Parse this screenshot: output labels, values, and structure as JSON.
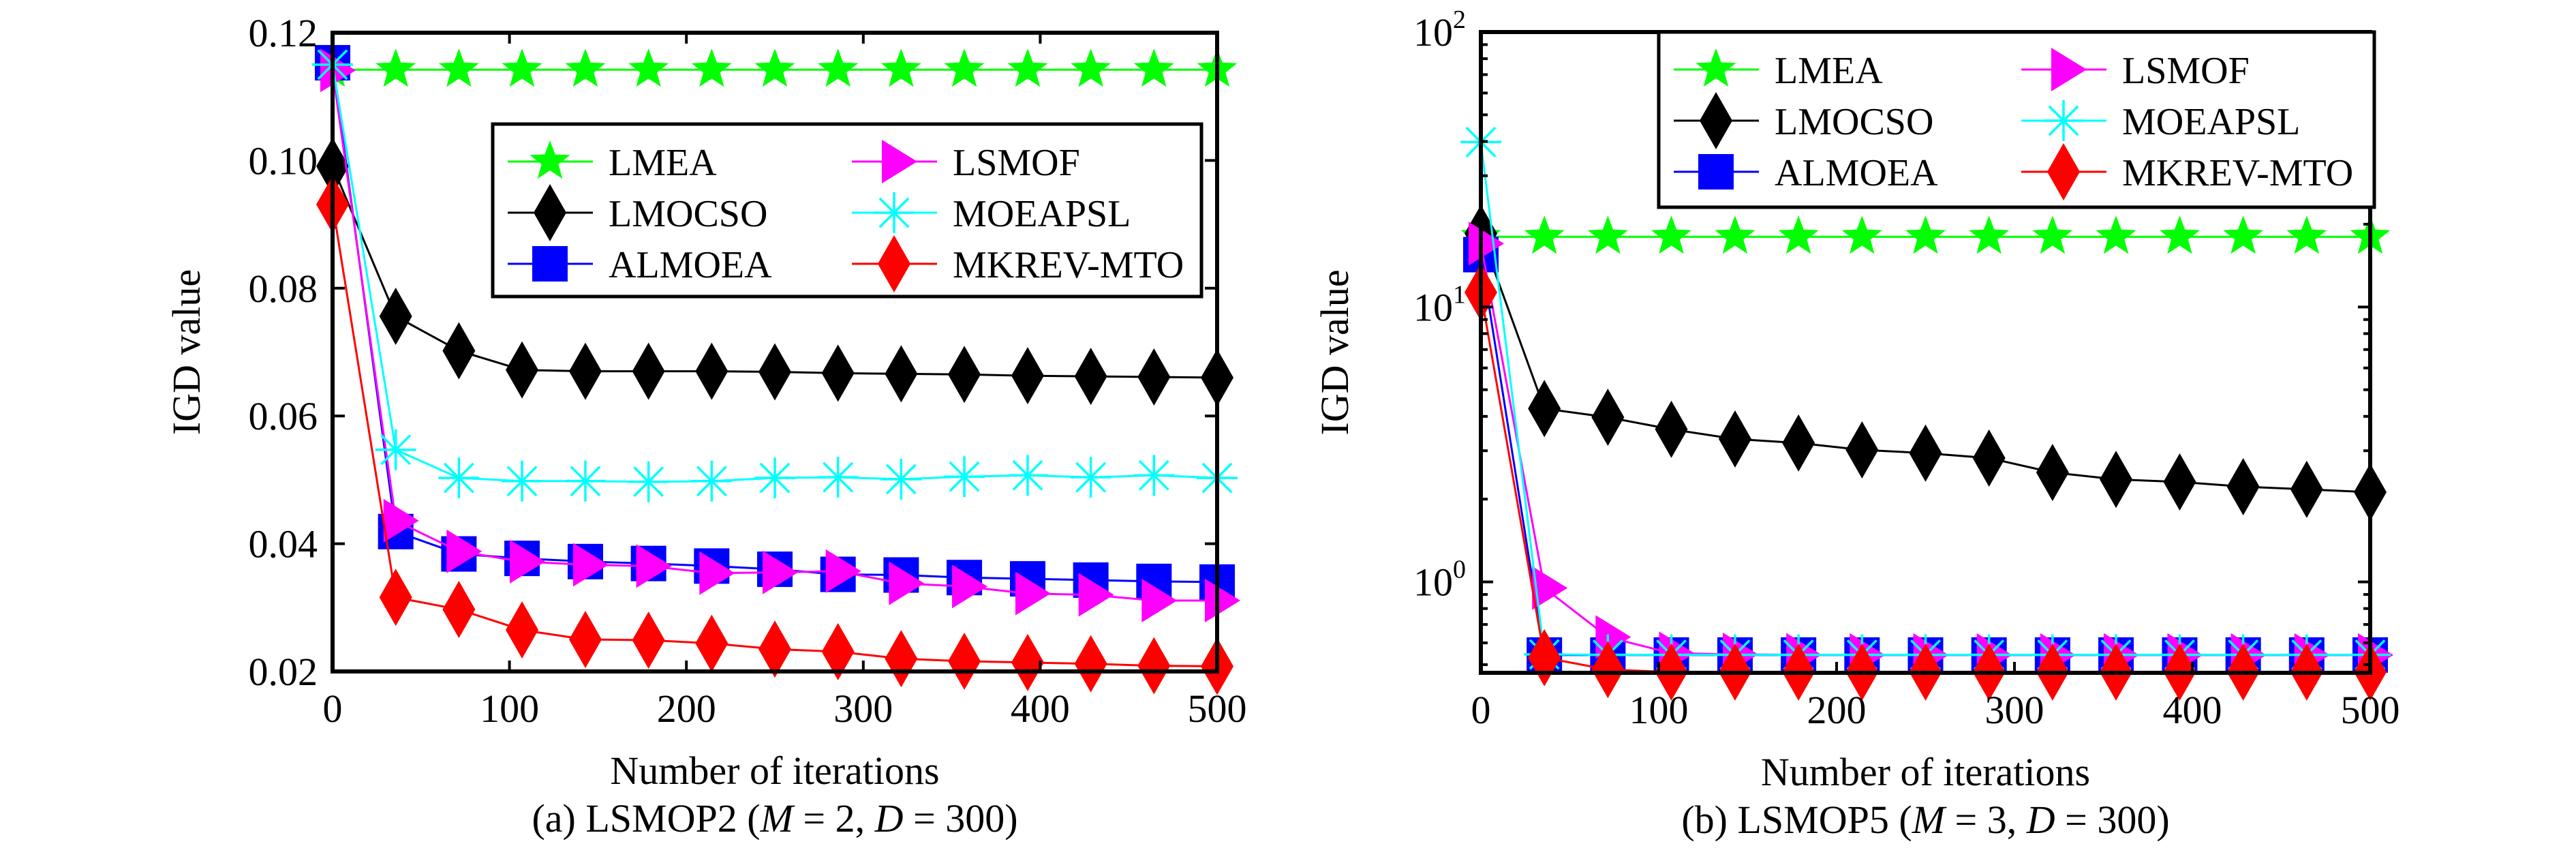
{
  "chart_data": [
    {
      "id": "a",
      "type": "line",
      "title": "",
      "caption": {
        "prefix": "(a) LSMOP2 (",
        "m_var": "M",
        "m_eq": " = 2, ",
        "d_var": "D",
        "d_eq": " = 300)"
      },
      "xlabel": "Number of iterations",
      "ylabel": "IGD value",
      "yscale": "linear",
      "xlim": [
        0,
        500
      ],
      "ylim": [
        0.02,
        0.12
      ],
      "xticks": [
        0,
        100,
        200,
        300,
        400,
        500
      ],
      "xtick_labels": [
        "0",
        "100",
        "200",
        "300",
        "400",
        "500"
      ],
      "yticks": [
        0.02,
        0.04,
        0.06,
        0.08,
        0.1,
        0.12
      ],
      "ytick_labels": [
        "0.02",
        "0.04",
        "0.06",
        "0.08",
        "0.10",
        "0.12"
      ],
      "grid": false,
      "legend": {
        "placement": "upper-right-inside",
        "columns": 2
      },
      "x": [
        0,
        35.7,
        71.4,
        107.1,
        142.9,
        178.6,
        214.3,
        250,
        285.7,
        321.4,
        357.1,
        392.9,
        428.6,
        464.3,
        500
      ],
      "series": [
        {
          "name": "LMEA",
          "color": "#00ff00",
          "marker": "star",
          "values": [
            0.1142,
            0.1142,
            0.1142,
            0.1142,
            0.1142,
            0.1142,
            0.1142,
            0.1142,
            0.1142,
            0.1142,
            0.1142,
            0.1142,
            0.1142,
            0.1142,
            0.1142
          ]
        },
        {
          "name": "LMOCSO",
          "color": "#000000",
          "marker": "diamond",
          "values": [
            0.0991,
            0.0756,
            0.0702,
            0.0672,
            0.067,
            0.067,
            0.067,
            0.0669,
            0.0667,
            0.0666,
            0.0665,
            0.0663,
            0.0662,
            0.0661,
            0.066
          ]
        },
        {
          "name": "ALMOEA",
          "color": "#0000ff",
          "marker": "square",
          "values": [
            0.1153,
            0.0419,
            0.0384,
            0.0377,
            0.0372,
            0.0369,
            0.0365,
            0.036,
            0.0352,
            0.0351,
            0.0347,
            0.0345,
            0.0343,
            0.0341,
            0.034
          ]
        },
        {
          "name": "LSMOF",
          "color": "#ff00ff",
          "marker": "triangle-right",
          "values": [
            0.1141,
            0.0436,
            0.0388,
            0.0372,
            0.0367,
            0.0365,
            0.0354,
            0.0355,
            0.0357,
            0.0338,
            0.0333,
            0.0322,
            0.032,
            0.0311,
            0.0311
          ]
        },
        {
          "name": "MOEAPSL",
          "color": "#00ffff",
          "marker": "asterisk",
          "values": [
            0.115,
            0.0547,
            0.0503,
            0.0498,
            0.0498,
            0.0497,
            0.0498,
            0.0503,
            0.0504,
            0.0501,
            0.0505,
            0.0507,
            0.0504,
            0.0507,
            0.0503
          ]
        },
        {
          "name": "MKREV-MTO",
          "color": "#ff0000",
          "marker": "diamond",
          "values": [
            0.0931,
            0.0316,
            0.0297,
            0.0265,
            0.025,
            0.0249,
            0.0244,
            0.0235,
            0.0231,
            0.022,
            0.0216,
            0.0214,
            0.0212,
            0.0209,
            0.0208
          ]
        }
      ]
    },
    {
      "id": "b",
      "type": "line",
      "title": "",
      "caption": {
        "prefix": "(b) LSMOP5 (",
        "m_var": "M",
        "m_eq": " = 3, ",
        "d_var": "D",
        "d_eq": " = 300)"
      },
      "xlabel": "Number of iterations",
      "ylabel": "IGD value",
      "yscale": "log",
      "xlim": [
        0,
        500
      ],
      "ylim": [
        0.467,
        100
      ],
      "xticks": [
        0,
        100,
        200,
        300,
        400,
        500
      ],
      "xtick_labels": [
        "0",
        "100",
        "200",
        "300",
        "400",
        "500"
      ],
      "yticks": [
        1,
        10,
        100
      ],
      "ytick_labels": [
        {
          "base": "10",
          "exp": "0"
        },
        {
          "base": "10",
          "exp": "1"
        },
        {
          "base": "10",
          "exp": "2"
        }
      ],
      "grid": false,
      "legend": {
        "placement": "top-right-inside",
        "columns": 2
      },
      "x": [
        0,
        35.7,
        71.4,
        107.1,
        142.9,
        178.6,
        214.3,
        250,
        285.7,
        321.4,
        357.1,
        392.9,
        428.6,
        464.3,
        500
      ],
      "series": [
        {
          "name": "LMEA",
          "color": "#00ff00",
          "marker": "star",
          "values": [
            18.0,
            18.0,
            18.0,
            18.0,
            18.0,
            18.0,
            18.0,
            18.0,
            18.0,
            18.0,
            18.0,
            18.0,
            18.0,
            18.0,
            18.0
          ]
        },
        {
          "name": "LMOCSO",
          "color": "#000000",
          "marker": "diamond",
          "values": [
            18.5,
            4.27,
            3.97,
            3.59,
            3.31,
            3.2,
            3.02,
            2.94,
            2.82,
            2.5,
            2.36,
            2.31,
            2.22,
            2.17,
            2.12
          ]
        },
        {
          "name": "ALMOEA",
          "color": "#0000ff",
          "marker": "square",
          "values": [
            15.5,
            0.542,
            0.542,
            0.542,
            0.542,
            0.542,
            0.542,
            0.542,
            0.542,
            0.542,
            0.542,
            0.542,
            0.542,
            0.542,
            0.542
          ]
        },
        {
          "name": "LSMOF",
          "color": "#ff00ff",
          "marker": "triangle-right",
          "values": [
            17.0,
            0.95,
            0.63,
            0.55,
            0.545,
            0.543,
            0.542,
            0.542,
            0.542,
            0.542,
            0.542,
            0.542,
            0.542,
            0.542,
            0.542
          ]
        },
        {
          "name": "MOEAPSL",
          "color": "#00ffff",
          "marker": "asterisk",
          "values": [
            39.8,
            0.545,
            0.543,
            0.543,
            0.543,
            0.543,
            0.543,
            0.543,
            0.543,
            0.543,
            0.543,
            0.543,
            0.543,
            0.543,
            0.543
          ]
        },
        {
          "name": "MKREV-MTO",
          "color": "#ff0000",
          "marker": "diamond",
          "values": [
            11.3,
            0.53,
            0.48,
            0.47,
            0.47,
            0.47,
            0.47,
            0.47,
            0.47,
            0.47,
            0.47,
            0.47,
            0.47,
            0.47,
            0.47
          ]
        }
      ]
    }
  ]
}
